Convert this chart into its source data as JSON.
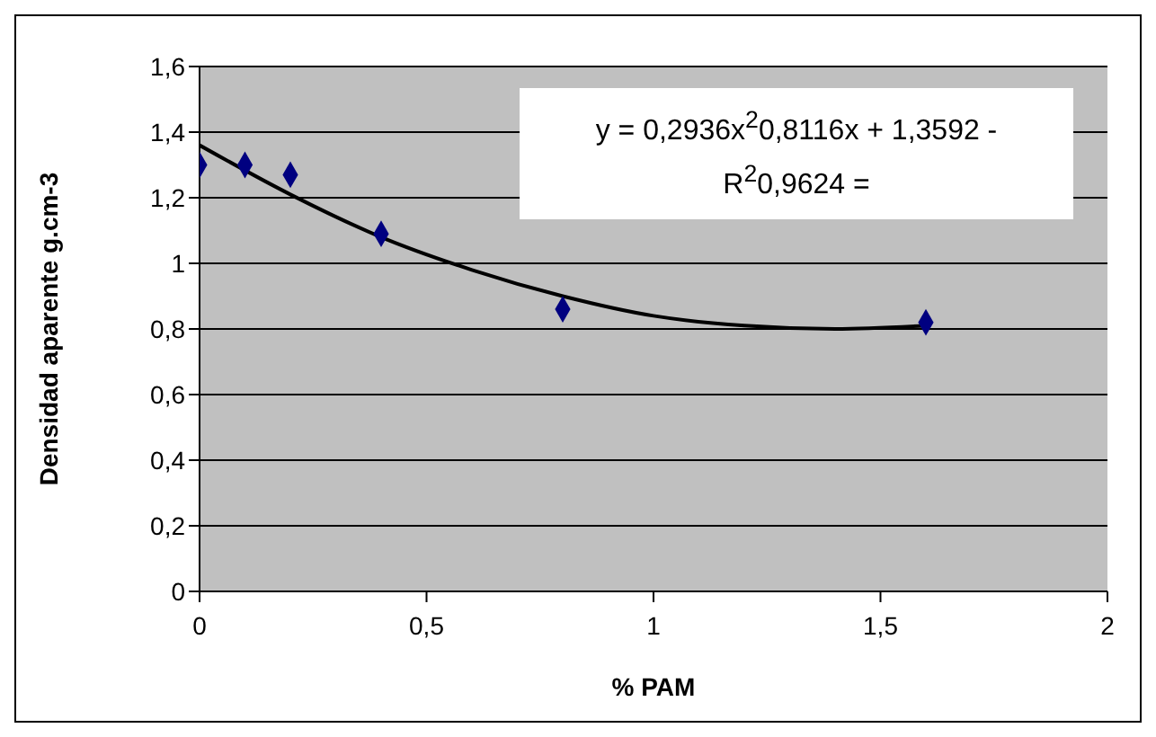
{
  "chart_data": {
    "type": "scatter",
    "xlabel": "% PAM",
    "ylabel": "Densidad aparente g.cm-3",
    "x": [
      0,
      0.1,
      0.2,
      0.4,
      0.8,
      1.6
    ],
    "series": [
      {
        "color": "#000080",
        "marker": "diamond",
        "values": [
          1.3,
          1.3,
          1.27,
          1.09,
          0.86,
          0.82
        ]
      },
      {
        "type": "line",
        "color": "#000000",
        "marker": "none",
        "x": [
          0,
          0.2,
          0.4,
          0.6,
          0.8,
          1.0,
          1.2,
          1.4,
          1.6
        ],
        "values": [
          1.36,
          1.21,
          1.08,
          0.98,
          0.9,
          0.84,
          0.81,
          0.8,
          0.81
        ]
      }
    ],
    "xlim": [
      0,
      2
    ],
    "xticks": [
      0,
      {
        "value": 0.5,
        "label": "0,5"
      },
      1,
      {
        "value": 1.5,
        "label": "1,5"
      },
      2
    ],
    "ylim": [
      0,
      1.6
    ],
    "yticks": [
      0,
      {
        "value": 0.2,
        "label": "0,2"
      },
      {
        "value": 0.4,
        "label": "0,4"
      },
      {
        "value": 0.6,
        "label": "0,6"
      },
      {
        "value": 0.8,
        "label": "0,8"
      },
      1,
      {
        "value": 1.2,
        "label": "1,2"
      },
      {
        "value": 1.4,
        "label": "1,4"
      },
      {
        "value": 1.6,
        "label": "1,6"
      }
    ],
    "grid": "y",
    "annotations": [
      "y = 0,2936x$^{2}$0,8116x + 1,3592 -",
      "R$^{2}$0,9624 ="
    ]
  }
}
